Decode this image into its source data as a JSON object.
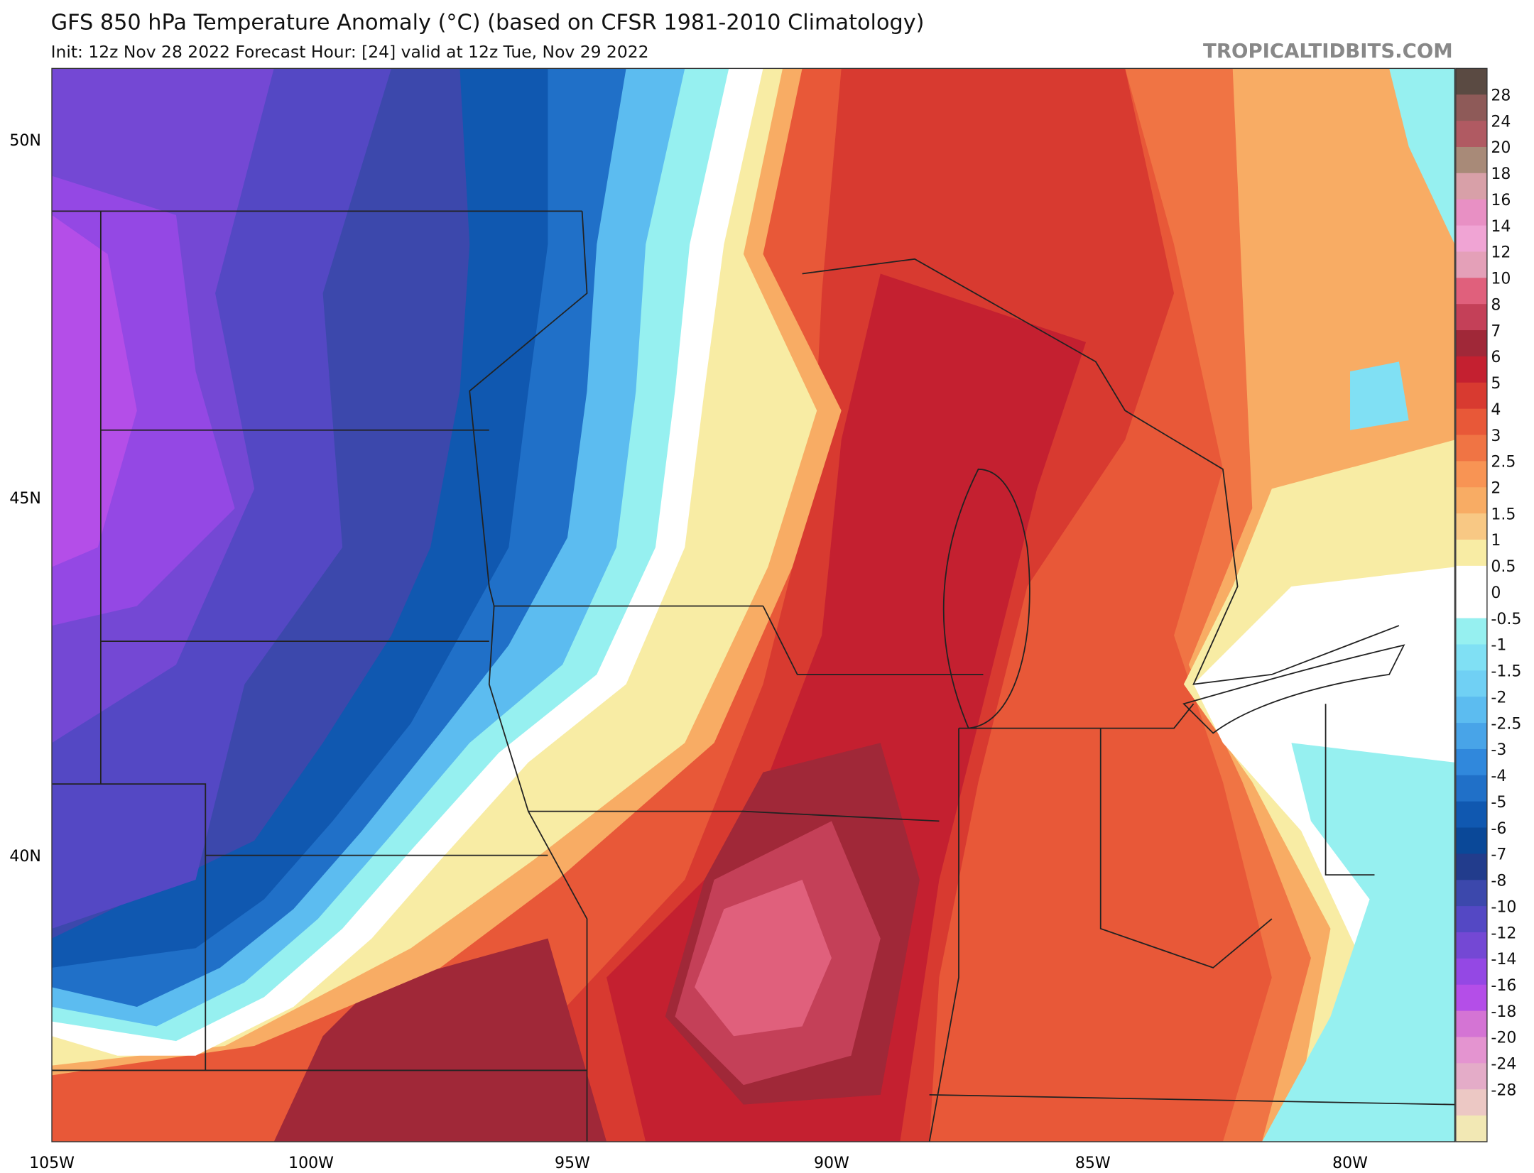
{
  "header": {
    "title": "GFS 850 hPa Temperature Anomaly (°C) (based on CFSR 1981-2010 Climatology)",
    "subtitle": "Init: 12z Nov 28 2022   Forecast Hour: [24]   valid at 12z Tue, Nov 29 2022",
    "watermark": "TROPICALTIDBITS.COM"
  },
  "map": {
    "lat_labels": [
      "50N",
      "45N",
      "40N"
    ],
    "lon_labels": [
      "105W",
      "100W",
      "95W",
      "90W",
      "85W",
      "80W"
    ]
  },
  "colorbar": {
    "labels": [
      "28",
      "24",
      "20",
      "18",
      "16",
      "14",
      "12",
      "10",
      "8",
      "7",
      "6",
      "5",
      "4",
      "3",
      "2.5",
      "2",
      "1.5",
      "1",
      "0.5",
      "0",
      "-0.5",
      "-1",
      "-1.5",
      "-2",
      "-2.5",
      "-3",
      "-4",
      "-5",
      "-6",
      "-7",
      "-8",
      "-10",
      "-12",
      "-14",
      "-16",
      "-18",
      "-20",
      "-24",
      "-28"
    ],
    "colors": [
      "#5a4a42",
      "#8e5a58",
      "#b05a62",
      "#a88a78",
      "#d8a0a8",
      "#e890c4",
      "#f0a4d4",
      "#e4a0b8",
      "#e0607c",
      "#c44058",
      "#a02838",
      "#c42030",
      "#d83a30",
      "#e85838",
      "#f07444",
      "#f89454",
      "#f8ac64",
      "#f8c884",
      "#f8eca4",
      "#ffffff",
      "#ffffff",
      "#96f0f0",
      "#80e0f4",
      "#70d0f4",
      "#5cbcf0",
      "#48a4e8",
      "#3088dc",
      "#2070c8",
      "#1058b0",
      "#0a4898",
      "#223c8c",
      "#3c48ac",
      "#5448c4",
      "#7448d4",
      "#9448e4",
      "#b44ee8",
      "#d474d4",
      "#e494d0",
      "#e4acc8",
      "#ecc8c4",
      "#f2e8b4"
    ]
  }
}
